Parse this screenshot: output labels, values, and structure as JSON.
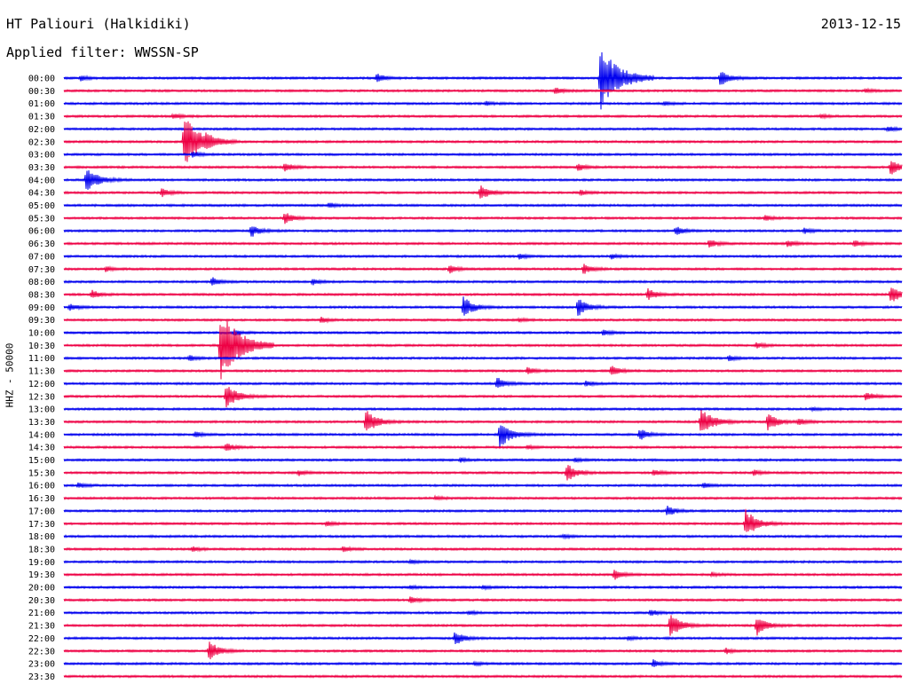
{
  "header": {
    "station": "HT Paliouri (Halkidiki)",
    "date": "2013-12-15",
    "filter": "Applied filter: WWSSN-SP"
  },
  "chart_data": {
    "type": "line",
    "title": "HT Paliouri (Halkidiki)",
    "subtitle": "Applied filter: WWSSN-SP",
    "ylabel": "HHZ - 50000",
    "xlabel": "",
    "grid": false,
    "legend": "none",
    "colors": {
      "even_rows": "#0000ee",
      "odd_rows": "#ee0044"
    },
    "x_minutes": [
      0,
      30
    ],
    "rows": [
      {
        "time": "00:00",
        "events": [
          {
            "t": 0.6,
            "a": 3
          },
          {
            "t": 11.2,
            "a": 5
          },
          {
            "t": 19.2,
            "a": 38
          },
          {
            "t": 23.5,
            "a": 9
          }
        ]
      },
      {
        "time": "00:30",
        "events": [
          {
            "t": 17.6,
            "a": 4
          },
          {
            "t": 28.7,
            "a": 2
          }
        ]
      },
      {
        "time": "01:00",
        "events": [
          {
            "t": 15.1,
            "a": 2
          },
          {
            "t": 21.5,
            "a": 2
          }
        ]
      },
      {
        "time": "01:30",
        "events": [
          {
            "t": 3.9,
            "a": 3
          },
          {
            "t": 27.1,
            "a": 2
          }
        ]
      },
      {
        "time": "02:00",
        "events": [
          {
            "t": 29.5,
            "a": 3
          }
        ]
      },
      {
        "time": "02:30",
        "events": [
          {
            "t": 4.3,
            "a": 30
          },
          {
            "t": 5.1,
            "a": 5
          }
        ]
      },
      {
        "time": "03:00",
        "events": [
          {
            "t": 4.6,
            "a": 4
          }
        ]
      },
      {
        "time": "03:30",
        "events": [
          {
            "t": 7.9,
            "a": 5
          },
          {
            "t": 18.4,
            "a": 4
          },
          {
            "t": 29.6,
            "a": 9
          }
        ]
      },
      {
        "time": "04:00",
        "events": [
          {
            "t": 0.8,
            "a": 15
          }
        ]
      },
      {
        "time": "04:30",
        "events": [
          {
            "t": 3.5,
            "a": 5
          },
          {
            "t": 14.9,
            "a": 9
          },
          {
            "t": 18.5,
            "a": 3
          }
        ]
      },
      {
        "time": "05:00",
        "events": [
          {
            "t": 9.5,
            "a": 3
          }
        ]
      },
      {
        "time": "05:30",
        "events": [
          {
            "t": 7.9,
            "a": 7
          },
          {
            "t": 25.1,
            "a": 3
          }
        ]
      },
      {
        "time": "06:00",
        "events": [
          {
            "t": 6.7,
            "a": 7
          },
          {
            "t": 21.9,
            "a": 5
          },
          {
            "t": 26.5,
            "a": 3
          }
        ]
      },
      {
        "time": "06:30",
        "events": [
          {
            "t": 23.1,
            "a": 5
          },
          {
            "t": 25.9,
            "a": 4
          },
          {
            "t": 28.3,
            "a": 4
          }
        ]
      },
      {
        "time": "07:00",
        "events": [
          {
            "t": 16.3,
            "a": 3
          },
          {
            "t": 19.6,
            "a": 3
          }
        ]
      },
      {
        "time": "07:30",
        "events": [
          {
            "t": 1.5,
            "a": 3
          },
          {
            "t": 13.8,
            "a": 5
          },
          {
            "t": 18.6,
            "a": 6
          }
        ]
      },
      {
        "time": "08:00",
        "events": [
          {
            "t": 5.3,
            "a": 5
          },
          {
            "t": 8.9,
            "a": 3
          }
        ]
      },
      {
        "time": "08:30",
        "events": [
          {
            "t": 1.0,
            "a": 5
          },
          {
            "t": 20.9,
            "a": 7
          },
          {
            "t": 29.6,
            "a": 10
          }
        ]
      },
      {
        "time": "09:00",
        "events": [
          {
            "t": 0.2,
            "a": 4
          },
          {
            "t": 14.3,
            "a": 12
          },
          {
            "t": 18.4,
            "a": 11
          }
        ]
      },
      {
        "time": "09:30",
        "events": [
          {
            "t": 9.2,
            "a": 3
          },
          {
            "t": 16.3,
            "a": 2
          }
        ]
      },
      {
        "time": "10:00",
        "events": [
          {
            "t": 6.1,
            "a": 3
          },
          {
            "t": 19.3,
            "a": 3
          }
        ]
      },
      {
        "time": "10:30",
        "events": [
          {
            "t": 5.6,
            "a": 40
          },
          {
            "t": 24.8,
            "a": 3
          }
        ]
      },
      {
        "time": "11:00",
        "events": [
          {
            "t": 4.5,
            "a": 3
          },
          {
            "t": 23.8,
            "a": 3
          }
        ]
      },
      {
        "time": "11:30",
        "events": [
          {
            "t": 16.6,
            "a": 4
          },
          {
            "t": 19.6,
            "a": 6
          }
        ]
      },
      {
        "time": "12:00",
        "events": [
          {
            "t": 15.5,
            "a": 7
          },
          {
            "t": 18.7,
            "a": 3
          }
        ]
      },
      {
        "time": "12:30",
        "events": [
          {
            "t": 5.8,
            "a": 14
          },
          {
            "t": 28.7,
            "a": 5
          }
        ]
      },
      {
        "time": "13:00",
        "events": [
          {
            "t": 26.8,
            "a": 2
          }
        ]
      },
      {
        "time": "13:30",
        "events": [
          {
            "t": 10.8,
            "a": 14
          },
          {
            "t": 22.8,
            "a": 17
          },
          {
            "t": 25.2,
            "a": 10
          },
          {
            "t": 26.3,
            "a": 4
          }
        ]
      },
      {
        "time": "14:00",
        "events": [
          {
            "t": 4.7,
            "a": 3
          },
          {
            "t": 15.6,
            "a": 15
          },
          {
            "t": 20.6,
            "a": 7
          }
        ]
      },
      {
        "time": "14:30",
        "events": [
          {
            "t": 5.8,
            "a": 5
          },
          {
            "t": 16.6,
            "a": 2
          }
        ]
      },
      {
        "time": "15:00",
        "events": [
          {
            "t": 14.2,
            "a": 2
          },
          {
            "t": 18.3,
            "a": 2
          }
        ]
      },
      {
        "time": "15:30",
        "events": [
          {
            "t": 8.4,
            "a": 3
          },
          {
            "t": 18.0,
            "a": 10
          },
          {
            "t": 21.1,
            "a": 4
          },
          {
            "t": 24.7,
            "a": 3
          }
        ]
      },
      {
        "time": "16:00",
        "events": [
          {
            "t": 0.5,
            "a": 3
          },
          {
            "t": 22.9,
            "a": 3
          }
        ]
      },
      {
        "time": "16:30",
        "events": [
          {
            "t": 13.3,
            "a": 2
          }
        ]
      },
      {
        "time": "17:00",
        "events": [
          {
            "t": 21.6,
            "a": 6
          }
        ]
      },
      {
        "time": "17:30",
        "events": [
          {
            "t": 9.4,
            "a": 3
          },
          {
            "t": 24.4,
            "a": 16
          }
        ]
      },
      {
        "time": "18:00",
        "events": [
          {
            "t": 17.9,
            "a": 2
          }
        ]
      },
      {
        "time": "18:30",
        "events": [
          {
            "t": 4.6,
            "a": 3
          },
          {
            "t": 10.0,
            "a": 3
          }
        ]
      },
      {
        "time": "19:00",
        "events": [
          {
            "t": 12.4,
            "a": 2
          }
        ]
      },
      {
        "time": "19:30",
        "events": [
          {
            "t": 19.7,
            "a": 6
          },
          {
            "t": 23.2,
            "a": 2
          }
        ]
      },
      {
        "time": "20:00",
        "events": [
          {
            "t": 12.4,
            "a": 2
          },
          {
            "t": 15.0,
            "a": 2
          }
        ]
      },
      {
        "time": "20:30",
        "events": [
          {
            "t": 12.4,
            "a": 4
          }
        ]
      },
      {
        "time": "21:00",
        "events": [
          {
            "t": 14.5,
            "a": 2
          },
          {
            "t": 21.0,
            "a": 4
          }
        ]
      },
      {
        "time": "21:30",
        "events": [
          {
            "t": 21.7,
            "a": 14
          },
          {
            "t": 24.8,
            "a": 11
          }
        ]
      },
      {
        "time": "22:00",
        "events": [
          {
            "t": 14.0,
            "a": 8
          },
          {
            "t": 20.2,
            "a": 2
          }
        ]
      },
      {
        "time": "22:30",
        "events": [
          {
            "t": 5.2,
            "a": 11
          },
          {
            "t": 23.7,
            "a": 3
          }
        ]
      },
      {
        "time": "23:00",
        "events": [
          {
            "t": 21.1,
            "a": 4
          },
          {
            "t": 14.7,
            "a": 2
          }
        ]
      },
      {
        "time": "23:30",
        "events": []
      }
    ]
  }
}
